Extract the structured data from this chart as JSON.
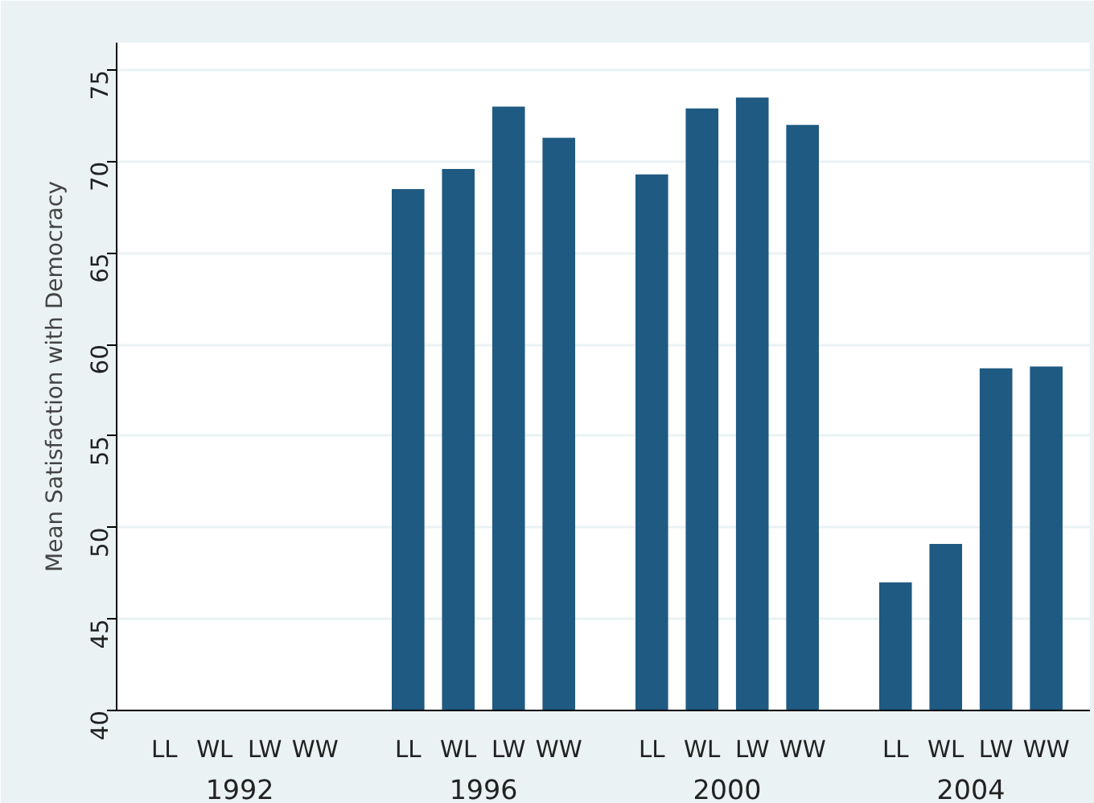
{
  "chart_data": {
    "type": "bar",
    "ylabel": "Mean Satisfaction with Democracy",
    "categories": [
      "LL",
      "WL",
      "LW",
      "WW",
      "LL",
      "WL",
      "LW",
      "WW",
      "LL",
      "WL",
      "LW",
      "WW",
      "LL",
      "WL",
      "LW",
      "WW"
    ],
    "values": [
      null,
      null,
      null,
      null,
      68.5,
      69.6,
      73.0,
      71.3,
      69.3,
      72.9,
      73.5,
      72.0,
      47.0,
      49.1,
      58.7,
      58.8
    ],
    "color": "#1f5a82",
    "annotations": [
      "1992",
      "1996",
      "2000",
      "2004"
    ],
    "ylim": [
      40,
      76.5
    ],
    "yticks": [
      40,
      45,
      50,
      55,
      60,
      65,
      70,
      75
    ],
    "grid": "y"
  }
}
